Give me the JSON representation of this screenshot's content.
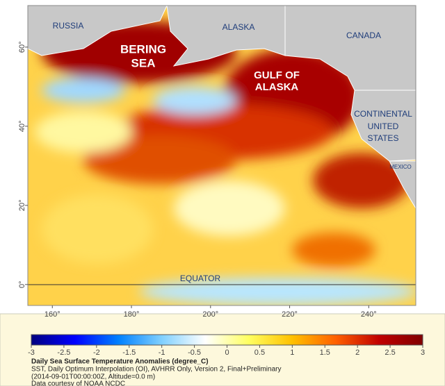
{
  "map": {
    "labels": {
      "russia": "RUSSIA",
      "alaska": "ALASKA",
      "canada": "CANADA",
      "bering": [
        "BERING",
        "SEA"
      ],
      "gulf": [
        "GULF OF",
        "ALASKA"
      ],
      "us": [
        "CONTINENTAL",
        "UNITED",
        "STATES"
      ],
      "mexico": "MEXICO",
      "equator": "EQUATOR"
    },
    "latlim": [
      -5.3,
      70.5
    ],
    "lonlim": [
      153.8,
      251.9
    ],
    "latticks": [
      {
        "value": 60,
        "label": "60°"
      },
      {
        "value": 40,
        "label": "40°"
      },
      {
        "value": 20,
        "label": "20°"
      },
      {
        "value": 0,
        "label": "0°"
      }
    ],
    "lonticks": [
      {
        "value": 160,
        "label": "160°"
      },
      {
        "value": 180,
        "label": "180°"
      },
      {
        "value": 200,
        "label": "200°"
      },
      {
        "value": 220,
        "label": "220°"
      },
      {
        "value": 240,
        "label": "240°"
      }
    ]
  },
  "colorbar": {
    "lim": [
      -3,
      3
    ],
    "ticks": [
      -3,
      -2.5,
      -2,
      -1.5,
      -1,
      -0.5,
      0,
      0.5,
      1,
      1.5,
      2,
      2.5,
      3
    ],
    "colors": [
      "#00007f",
      "#0000ff",
      "#0080ff",
      "#80d0ff",
      "#ffffff",
      "#ffff60",
      "#ffc000",
      "#ff6000",
      "#c00000",
      "#800000"
    ]
  },
  "caption": [
    "Daily Sea Surface Temperature Anomalies (degree_C)",
    "SST, Daily Optimum Interpolation (OI), AVHRR Only, Version 2, Final+Preliminary",
    "(2014-09-01T00:00:00Z, Altitude=0.0 m)",
    "Data courtesy of NOAA NCDC"
  ]
}
